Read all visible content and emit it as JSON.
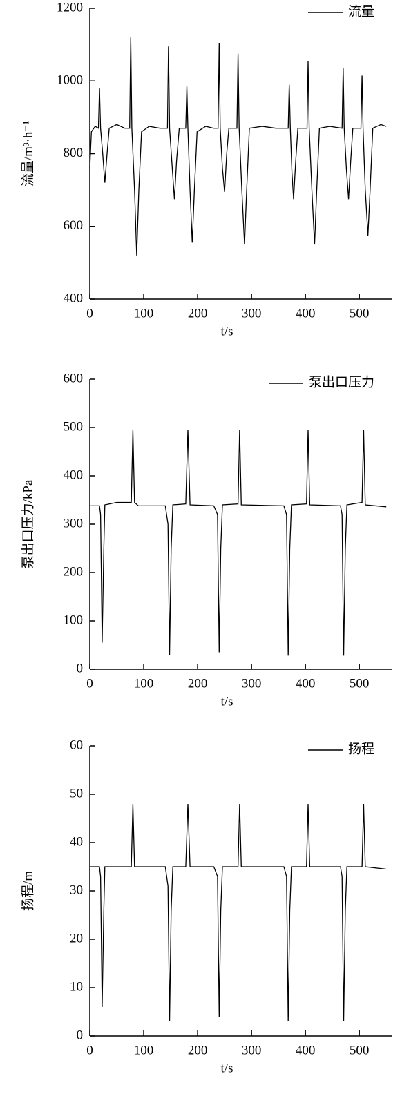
{
  "chart_data": [
    {
      "type": "line",
      "ylabel": "流量/m³·h⁻¹",
      "xlabel": "t/s",
      "legend": "upper right",
      "xlim": [
        0,
        560
      ],
      "xticks": [
        0,
        100,
        200,
        300,
        400,
        500
      ],
      "ylim": [
        400,
        1200
      ],
      "yticks": [
        400,
        600,
        800,
        1000,
        1200
      ],
      "x": [
        0,
        3,
        10,
        16,
        18,
        20,
        24,
        28,
        32,
        36,
        50,
        65,
        74,
        76,
        78,
        83,
        87,
        91,
        96,
        110,
        130,
        144,
        146,
        148,
        153,
        157,
        161,
        166,
        178,
        180,
        182,
        186,
        190,
        194,
        199,
        215,
        230,
        238,
        240,
        242,
        246,
        250,
        254,
        258,
        273,
        275,
        277,
        282,
        287,
        291,
        296,
        320,
        345,
        368,
        370,
        372,
        375,
        378,
        382,
        386,
        403,
        405,
        407,
        412,
        417,
        421,
        426,
        445,
        468,
        470,
        472,
        476,
        480,
        484,
        488,
        503,
        505,
        507,
        511,
        516,
        520,
        525,
        540,
        550
      ],
      "series": [
        {
          "name": "流量",
          "color": "#000000",
          "values": [
            760,
            860,
            875,
            870,
            980,
            870,
            800,
            720,
            800,
            870,
            880,
            870,
            870,
            1120,
            870,
            700,
            520,
            700,
            860,
            875,
            870,
            870,
            1095,
            870,
            760,
            675,
            780,
            870,
            870,
            985,
            870,
            700,
            555,
            700,
            860,
            875,
            870,
            870,
            1105,
            870,
            760,
            695,
            800,
            870,
            870,
            1075,
            870,
            700,
            550,
            700,
            870,
            875,
            870,
            870,
            990,
            870,
            750,
            675,
            780,
            870,
            870,
            1055,
            870,
            700,
            550,
            700,
            870,
            875,
            870,
            1035,
            870,
            760,
            675,
            780,
            870,
            870,
            1015,
            870,
            700,
            575,
            700,
            870,
            880,
            875
          ]
        }
      ]
    },
    {
      "type": "line",
      "ylabel": "泵出口压力/kPa",
      "xlabel": "t/s",
      "legend": "upper right",
      "xlim": [
        0,
        560
      ],
      "xticks": [
        0,
        100,
        200,
        300,
        400,
        500
      ],
      "ylim": [
        0,
        600
      ],
      "yticks": [
        0,
        100,
        200,
        300,
        400,
        500,
        600
      ],
      "x": [
        0,
        18,
        20,
        23,
        26,
        28,
        50,
        77,
        80,
        83,
        90,
        140,
        145,
        148,
        151,
        154,
        178,
        182,
        186,
        230,
        237,
        240,
        243,
        246,
        275,
        278,
        281,
        360,
        365,
        368,
        371,
        374,
        402,
        405,
        408,
        465,
        468,
        471,
        474,
        477,
        505,
        508,
        511,
        550
      ],
      "series": [
        {
          "name": "泵出口压力",
          "color": "#000000",
          "values": [
            338,
            338,
            320,
            55,
            250,
            340,
            345,
            345,
            495,
            345,
            338,
            338,
            300,
            30,
            250,
            340,
            342,
            495,
            340,
            338,
            320,
            35,
            250,
            340,
            342,
            495,
            340,
            338,
            320,
            28,
            250,
            340,
            342,
            495,
            340,
            338,
            320,
            28,
            250,
            340,
            345,
            495,
            340,
            336
          ]
        }
      ]
    },
    {
      "type": "line",
      "ylabel": "扬程/m",
      "xlabel": "t/s",
      "legend": "upper right",
      "xlim": [
        0,
        560
      ],
      "xticks": [
        0,
        100,
        200,
        300,
        400,
        500
      ],
      "ylim": [
        0,
        60
      ],
      "yticks": [
        0,
        10,
        20,
        30,
        40,
        50,
        60
      ],
      "x": [
        0,
        18,
        20,
        23,
        26,
        28,
        50,
        77,
        80,
        83,
        90,
        140,
        145,
        148,
        151,
        154,
        178,
        182,
        186,
        230,
        237,
        240,
        243,
        246,
        275,
        278,
        281,
        360,
        365,
        368,
        371,
        374,
        402,
        405,
        408,
        465,
        468,
        471,
        474,
        477,
        505,
        508,
        511,
        550
      ],
      "series": [
        {
          "name": "扬程",
          "color": "#000000",
          "values": [
            35,
            35,
            33,
            6,
            26,
            35,
            35,
            35,
            48,
            35,
            35,
            35,
            31,
            3,
            26,
            35,
            35,
            48,
            35,
            35,
            33,
            4,
            26,
            35,
            35,
            48,
            35,
            35,
            33,
            3,
            26,
            35,
            35,
            48,
            35,
            35,
            33,
            3,
            26,
            35,
            35,
            48,
            35,
            34.5
          ]
        }
      ]
    }
  ]
}
